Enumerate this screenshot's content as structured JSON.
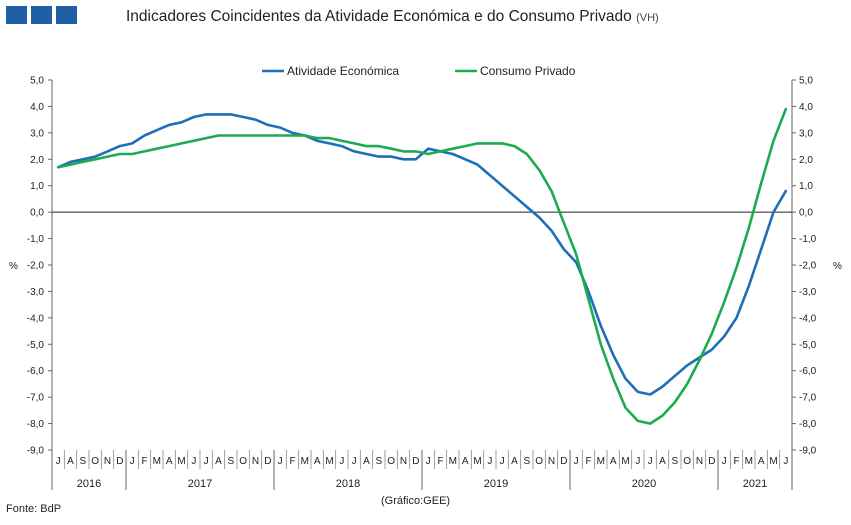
{
  "header": {
    "title": "Indicadores Coincidentes da Atividade Económica e do Consumo Privado",
    "subtitle": "(VH)"
  },
  "footer": {
    "source": "Fonte: BdP",
    "credit": "(Gráfico:GEE)"
  },
  "chart_data": {
    "type": "line",
    "title": "Indicadores Coincidentes da Atividade Económica e do Consumo Privado (VH)",
    "ylabel_left": "%",
    "ylabel_right": "%",
    "ylim": [
      -9,
      5
    ],
    "yticks": [
      "5,0",
      "4,0",
      "3,0",
      "2,0",
      "1,0",
      "0,0",
      "-1,0",
      "-2,0",
      "-3,0",
      "-4,0",
      "-5,0",
      "-6,0",
      "-7,0",
      "-8,0",
      "-9,0"
    ],
    "grid": false,
    "legend_position": "top",
    "x": [
      "2016-07",
      "2016-08",
      "2016-09",
      "2016-10",
      "2016-11",
      "2016-12",
      "2017-01",
      "2017-02",
      "2017-03",
      "2017-04",
      "2017-05",
      "2017-06",
      "2017-07",
      "2017-08",
      "2017-09",
      "2017-10",
      "2017-11",
      "2017-12",
      "2018-01",
      "2018-02",
      "2018-03",
      "2018-04",
      "2018-05",
      "2018-06",
      "2018-07",
      "2018-08",
      "2018-09",
      "2018-10",
      "2018-11",
      "2018-12",
      "2019-01",
      "2019-02",
      "2019-03",
      "2019-04",
      "2019-05",
      "2019-06",
      "2019-07",
      "2019-08",
      "2019-09",
      "2019-10",
      "2019-11",
      "2019-12",
      "2020-01",
      "2020-02",
      "2020-03",
      "2020-04",
      "2020-05",
      "2020-06",
      "2020-07",
      "2020-08",
      "2020-09",
      "2020-10",
      "2020-11",
      "2020-12",
      "2021-01",
      "2021-02",
      "2021-03",
      "2021-04",
      "2021-05",
      "2021-06"
    ],
    "month_labels": [
      "J",
      "A",
      "S",
      "O",
      "N",
      "D",
      "J",
      "F",
      "M",
      "A",
      "M",
      "J",
      "J",
      "A",
      "S",
      "O",
      "N",
      "D",
      "J",
      "F",
      "M",
      "A",
      "M",
      "J",
      "J",
      "A",
      "S",
      "O",
      "N",
      "D",
      "J",
      "F",
      "M",
      "A",
      "M",
      "J",
      "J",
      "A",
      "S",
      "O",
      "N",
      "D",
      "J",
      "F",
      "M",
      "A",
      "M",
      "J",
      "J",
      "A",
      "S",
      "O",
      "N",
      "D",
      "J",
      "F",
      "M",
      "A",
      "M",
      "J"
    ],
    "years": [
      {
        "label": "2016",
        "months": 6
      },
      {
        "label": "2017",
        "months": 12
      },
      {
        "label": "2018",
        "months": 12
      },
      {
        "label": "2019",
        "months": 12
      },
      {
        "label": "2020",
        "months": 12
      },
      {
        "label": "2021",
        "months": 6
      }
    ],
    "series": [
      {
        "name": "Atividade Económica",
        "color": "#1f6fb8",
        "values": [
          1.7,
          1.9,
          2.0,
          2.1,
          2.3,
          2.5,
          2.6,
          2.9,
          3.1,
          3.3,
          3.4,
          3.6,
          3.7,
          3.7,
          3.7,
          3.6,
          3.5,
          3.3,
          3.2,
          3.0,
          2.9,
          2.7,
          2.6,
          2.5,
          2.3,
          2.2,
          2.1,
          2.1,
          2.0,
          2.0,
          2.4,
          2.3,
          2.2,
          2.0,
          1.8,
          1.4,
          1.0,
          0.6,
          0.2,
          -0.2,
          -0.7,
          -1.4,
          -1.9,
          -3.0,
          -4.3,
          -5.4,
          -6.3,
          -6.8,
          -6.9,
          -6.6,
          -6.2,
          -5.8,
          -5.5,
          -5.2,
          -4.7,
          -4.0,
          -2.8,
          -1.4,
          0.0,
          0.8
        ]
      },
      {
        "name": "Consumo Privado",
        "color": "#1eaa4e",
        "values": [
          1.7,
          1.8,
          1.9,
          2.0,
          2.1,
          2.2,
          2.2,
          2.3,
          2.4,
          2.5,
          2.6,
          2.7,
          2.8,
          2.9,
          2.9,
          2.9,
          2.9,
          2.9,
          2.9,
          2.9,
          2.9,
          2.8,
          2.8,
          2.7,
          2.6,
          2.5,
          2.5,
          2.4,
          2.3,
          2.3,
          2.2,
          2.3,
          2.4,
          2.5,
          2.6,
          2.6,
          2.6,
          2.5,
          2.2,
          1.6,
          0.8,
          -0.4,
          -1.6,
          -3.3,
          -5.0,
          -6.3,
          -7.4,
          -7.9,
          -8.0,
          -7.7,
          -7.2,
          -6.5,
          -5.6,
          -4.6,
          -3.4,
          -2.1,
          -0.6,
          1.1,
          2.7,
          3.9
        ]
      }
    ]
  }
}
